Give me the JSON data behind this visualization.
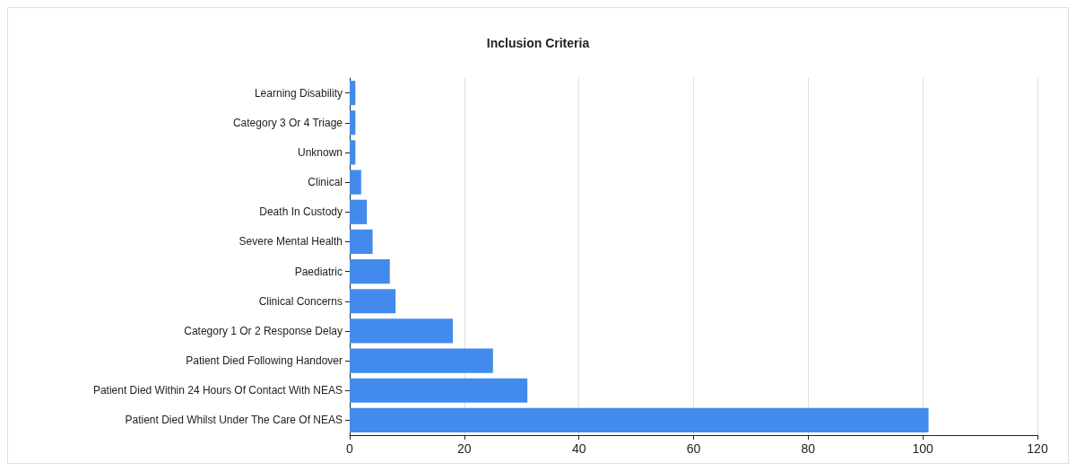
{
  "chart_data": {
    "type": "bar",
    "title": "Inclusion Criteria",
    "orientation": "horizontal",
    "categories": [
      "Learning Disability",
      "Category 3 Or 4 Triage",
      "Unknown",
      "Clinical",
      "Death In Custody",
      "Severe Mental Health",
      "Paediatric",
      "Clinical Concerns",
      "Category 1 Or 2 Response Delay",
      "Patient Died Following Handover",
      "Patient Died Within 24 Hours Of Contact With NEAS",
      "Patient Died Whilst Under The Care Of NEAS"
    ],
    "values": [
      1,
      1,
      1,
      2,
      3,
      4,
      7,
      8,
      18,
      25,
      31,
      101
    ],
    "color": "#428bed",
    "xlim": [
      0,
      120
    ],
    "xticks": [
      0,
      20,
      40,
      60,
      80,
      100,
      120
    ],
    "grid": "x"
  }
}
